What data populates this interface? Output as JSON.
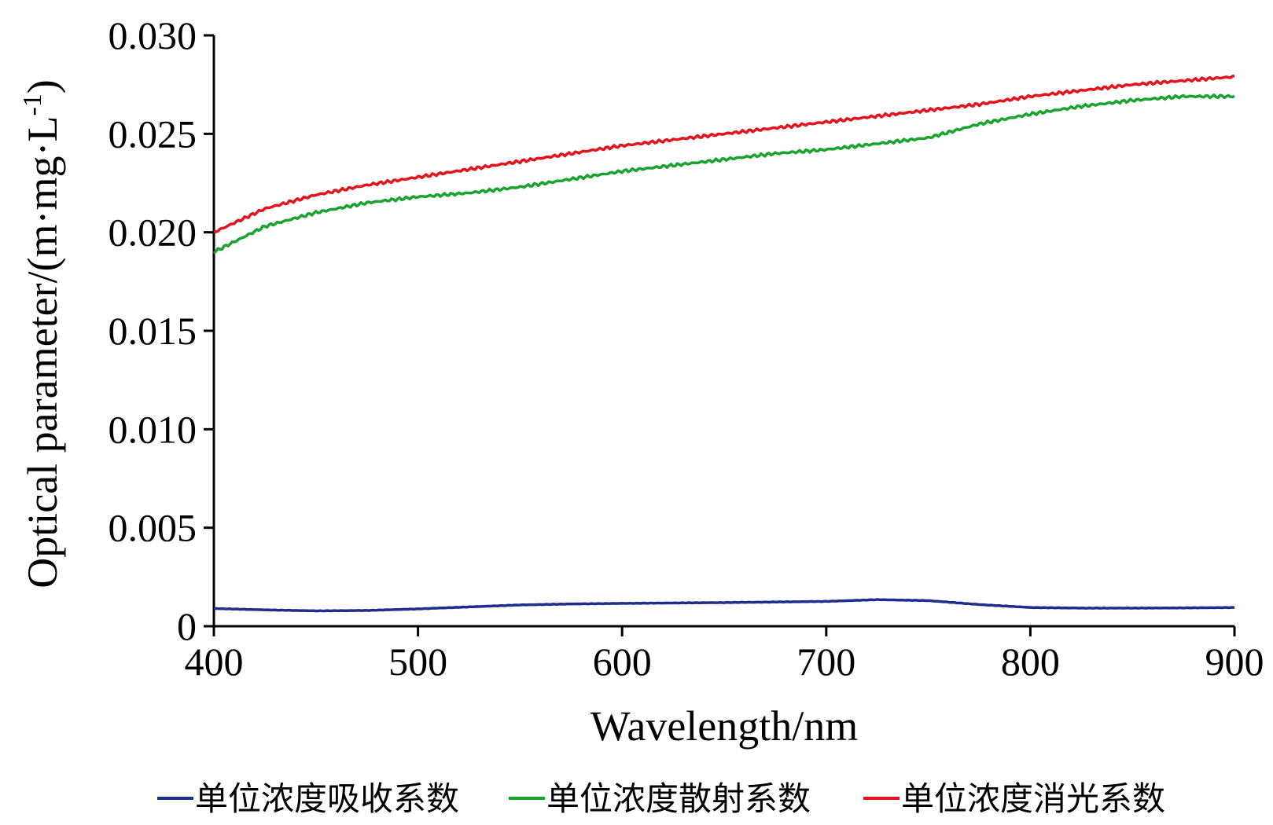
{
  "chart_data": {
    "type": "line",
    "xlabel": "Wavelength/nm",
    "ylabel": "Optical parameter/(m·mg·L-1)",
    "ylabel_parts": {
      "main": "Optical parameter/(m·mg·L",
      "sup": "-1",
      "close": ")"
    },
    "xlim": [
      400,
      900
    ],
    "ylim": [
      0,
      0.03
    ],
    "x_ticks": [
      400,
      500,
      600,
      700,
      800,
      900
    ],
    "x_tick_labels": [
      "400",
      "500",
      "600",
      "700",
      "800",
      "900"
    ],
    "y_ticks": [
      0,
      0.005,
      0.01,
      0.015,
      0.02,
      0.025,
      0.03
    ],
    "y_tick_labels": [
      "0",
      "0.005",
      "0.010",
      "0.015",
      "0.020",
      "0.025",
      "0.030"
    ],
    "grid": false,
    "legend_position": "bottom",
    "x": [
      400,
      425,
      450,
      475,
      500,
      525,
      550,
      575,
      600,
      625,
      650,
      675,
      700,
      725,
      750,
      775,
      800,
      825,
      850,
      875,
      900
    ],
    "series": [
      {
        "name": "单位浓度吸收系数",
        "color": "#1f2e8c",
        "values": [
          0.0009,
          0.00083,
          0.00078,
          0.0008,
          0.00088,
          0.00098,
          0.00108,
          0.00113,
          0.00116,
          0.00118,
          0.0012,
          0.00123,
          0.00126,
          0.00135,
          0.0013,
          0.0011,
          0.00095,
          0.00092,
          0.00092,
          0.00093,
          0.00095
        ]
      },
      {
        "name": "单位浓度散射系数",
        "color": "#1aa32e",
        "values": [
          0.019,
          0.0203,
          0.021,
          0.0215,
          0.0218,
          0.022,
          0.0223,
          0.0227,
          0.0231,
          0.0234,
          0.0237,
          0.024,
          0.0242,
          0.0245,
          0.0248,
          0.0255,
          0.026,
          0.0264,
          0.0267,
          0.0269,
          0.0269
        ]
      },
      {
        "name": "单位浓度消光系数",
        "color": "#e3141e",
        "values": [
          0.02,
          0.0212,
          0.0219,
          0.0224,
          0.0228,
          0.0232,
          0.0236,
          0.024,
          0.0244,
          0.0247,
          0.025,
          0.0253,
          0.0256,
          0.0259,
          0.0262,
          0.0265,
          0.0269,
          0.0272,
          0.0275,
          0.0277,
          0.0279
        ]
      }
    ]
  }
}
